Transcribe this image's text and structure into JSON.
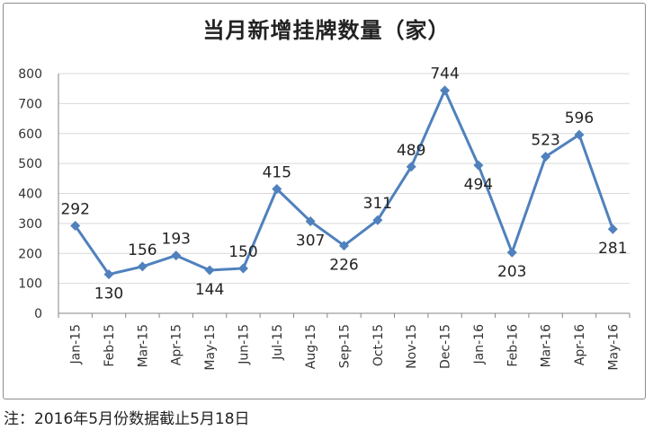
{
  "footnote": "注：2016年5月份数据截止5月18日",
  "chart_data": {
    "type": "line",
    "title": "当月新增挂牌数量（家）",
    "xlabel": "",
    "ylabel": "",
    "ylim": [
      0,
      800
    ],
    "yticks": [
      0,
      100,
      200,
      300,
      400,
      500,
      600,
      700,
      800
    ],
    "grid": true,
    "legend": "none",
    "categories": [
      "Jan-15",
      "Feb-15",
      "Mar-15",
      "Apr-15",
      "May-15",
      "Jun-15",
      "Jul-15",
      "Aug-15",
      "Sep-15",
      "Oct-15",
      "Nov-15",
      "Dec-15",
      "Jan-16",
      "Feb-16",
      "Mar-16",
      "Apr-16",
      "May-16"
    ],
    "series": [
      {
        "values": [
          292,
          130,
          156,
          193,
          144,
          150,
          415,
          307,
          226,
          311,
          489,
          744,
          494,
          203,
          523,
          596,
          281
        ]
      }
    ],
    "line_color": "#4f81bd",
    "grid_color": "#d9d9d9"
  }
}
